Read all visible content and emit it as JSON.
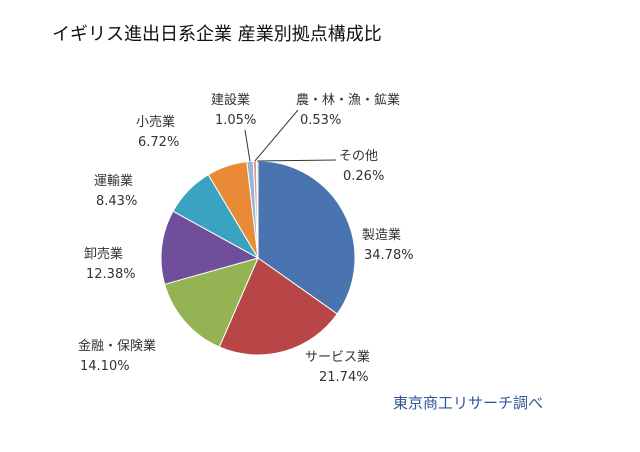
{
  "chart_data": {
    "type": "pie",
    "title": "イギリス進出日系企業  産業別拠点構成比",
    "slices": [
      {
        "name": "製造業",
        "value": 34.78,
        "label": "34.78%",
        "color": "#4a74b0"
      },
      {
        "name": "サービス業",
        "value": 21.74,
        "label": "21.74%",
        "color": "#b84646"
      },
      {
        "name": "金融・保険業",
        "value": 14.1,
        "label": "14.10%",
        "color": "#94b353"
      },
      {
        "name": "卸売業",
        "value": 12.38,
        "label": "12.38%",
        "color": "#6f4f9b"
      },
      {
        "name": "運輸業",
        "value": 8.43,
        "label": "8.43%",
        "color": "#3aa3bf"
      },
      {
        "name": "小売業",
        "value": 6.72,
        "label": "6.72%",
        "color": "#e98a37"
      },
      {
        "name": "建設業",
        "value": 1.05,
        "label": "1.05%",
        "color": "#9bb3d6"
      },
      {
        "name": "農・林・漁・鉱業",
        "value": 0.53,
        "label": "0.53%",
        "color": "#d59b9b"
      },
      {
        "name": "その他",
        "value": 0.26,
        "label": "0.26%",
        "color": "#c4d89e"
      }
    ],
    "source": "東京商工リサーチ調べ",
    "source_color": "#2f5597"
  }
}
